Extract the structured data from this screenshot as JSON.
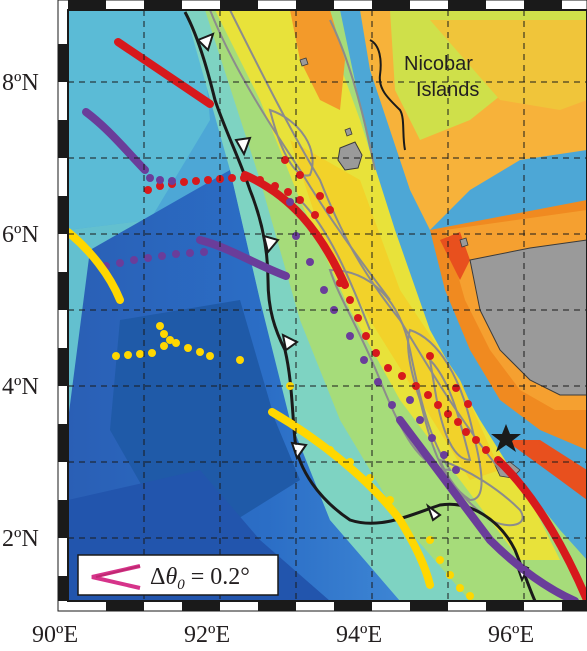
{
  "map": {
    "x_ticks": [
      "90ºE",
      "92ºE",
      "94ºE",
      "96ºE"
    ],
    "y_ticks": [
      "8ºN",
      "6ºN",
      "4ºN",
      "2ºN"
    ],
    "region_label_line1": "Nicobar",
    "region_label_line2": "Islands",
    "legend_label": "Δθ0 = 0.2°",
    "legend_symbol": "Δ",
    "legend_theta": "θ",
    "legend_sub": "0",
    "legend_rest": " = 0.2°",
    "colors": {
      "red_series": "#d7191c",
      "purple_series": "#6a3d9a",
      "yellow_series": "#ffd700",
      "trench": "#1a1a1a",
      "contour": "#8c8c8c",
      "land": "#9a9a9a",
      "legend_arrow": "#d6338a"
    },
    "epicenter_marker": "star"
  }
}
